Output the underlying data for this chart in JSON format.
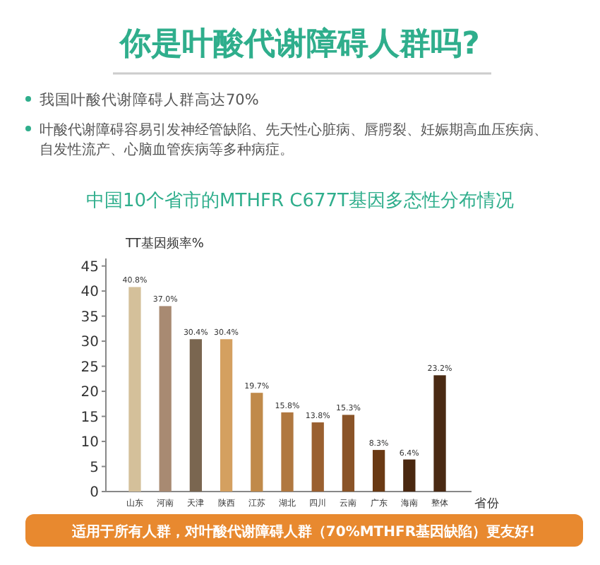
{
  "chart_data": {
    "type": "bar",
    "title": "你是叶酸代谢障碍人群吗?",
    "subtitle": "中国10个省市的MTHFR C677T基因多态性分布情况",
    "annotations": [
      "我国叶酸代谢障碍人群高达70%",
      "叶酸代谢障碍容易引发神经管缺陷、先天性心脏病、唇腭裂、妊娠期高血压疾病、自发性流产、心脑血管疾病等多种病症。",
      "适用于所有人群，对叶酸代谢障碍人群（70%MTHFR基因缺陷）更友好!"
    ],
    "ylabel": "TT基因频率%",
    "xlabel": "省份",
    "categories": [
      "山东",
      "河南",
      "天津",
      "陕西",
      "江苏",
      "湖北",
      "四川",
      "云南",
      "广东",
      "海南",
      "整体"
    ],
    "values": [
      40.8,
      37.0,
      30.4,
      30.4,
      19.7,
      15.8,
      13.8,
      15.3,
      8.3,
      6.4,
      23.2
    ],
    "value_labels": [
      "40.8%",
      "37.0%",
      "30.4%",
      "30.4%",
      "19.7%",
      "15.8%",
      "13.8%",
      "15.3%",
      "8.3%",
      "6.4%",
      "23.2%"
    ],
    "colors": [
      "#d4c09a",
      "#a88a72",
      "#7a6650",
      "#d4a060",
      "#c08a4a",
      "#b07840",
      "#9a6030",
      "#8a5428",
      "#6a3a14",
      "#4a2810",
      "#4a2a14"
    ],
    "ylim": [
      0,
      46.5
    ],
    "yticks": [
      0,
      5,
      10,
      15,
      20,
      25,
      30,
      35,
      40,
      45
    ],
    "grid": false
  }
}
